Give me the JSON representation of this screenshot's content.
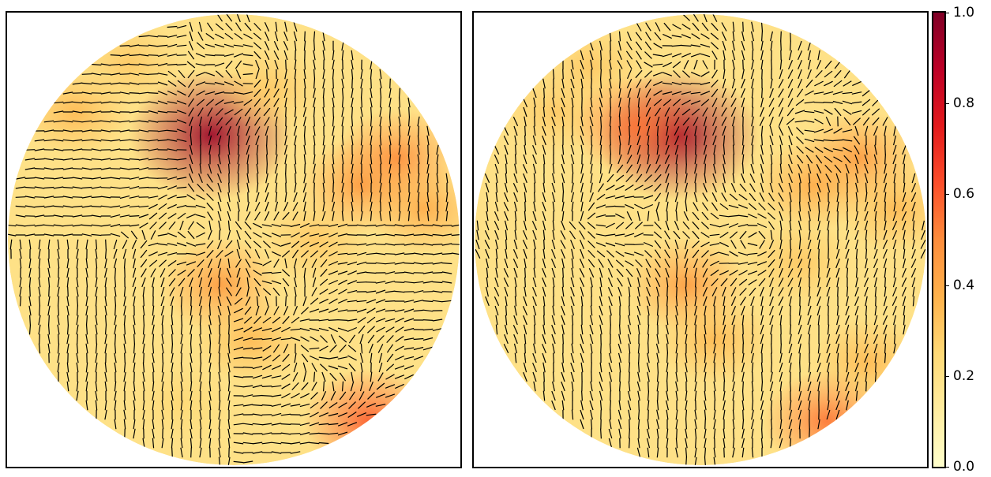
{
  "chart_data": [
    {
      "type": "heatmap",
      "panel": "left",
      "field": "orientation-vector-field",
      "colormap": "YlOrRd",
      "vmin": 0.0,
      "vmax": 1.0,
      "hotspots": [
        {
          "x": 0.45,
          "y": 0.27,
          "value": 0.95
        },
        {
          "x": 0.15,
          "y": 0.22,
          "value": 0.35
        },
        {
          "x": 0.27,
          "y": 0.11,
          "value": 0.3
        },
        {
          "x": 0.86,
          "y": 0.32,
          "value": 0.5
        },
        {
          "x": 0.78,
          "y": 0.38,
          "value": 0.45
        },
        {
          "x": 0.92,
          "y": 0.43,
          "value": 0.4
        },
        {
          "x": 0.47,
          "y": 0.6,
          "value": 0.45
        },
        {
          "x": 0.54,
          "y": 0.72,
          "value": 0.35
        },
        {
          "x": 0.8,
          "y": 0.9,
          "value": 0.6
        },
        {
          "x": 0.68,
          "y": 0.5,
          "value": 0.3
        },
        {
          "x": 0.38,
          "y": 0.86,
          "value": 0.25
        },
        {
          "x": 0.58,
          "y": 0.17,
          "value": 0.3
        }
      ]
    },
    {
      "type": "heatmap",
      "panel": "right",
      "field": "orientation-vector-field",
      "colormap": "YlOrRd",
      "vmin": 0.0,
      "vmax": 1.0,
      "hotspots": [
        {
          "x": 0.45,
          "y": 0.27,
          "value": 0.95
        },
        {
          "x": 0.18,
          "y": 0.22,
          "value": 0.3
        },
        {
          "x": 0.26,
          "y": 0.12,
          "value": 0.3
        },
        {
          "x": 0.36,
          "y": 0.25,
          "value": 0.55
        },
        {
          "x": 0.85,
          "y": 0.32,
          "value": 0.45
        },
        {
          "x": 0.75,
          "y": 0.38,
          "value": 0.4
        },
        {
          "x": 0.93,
          "y": 0.43,
          "value": 0.35
        },
        {
          "x": 0.47,
          "y": 0.6,
          "value": 0.45
        },
        {
          "x": 0.53,
          "y": 0.72,
          "value": 0.35
        },
        {
          "x": 0.78,
          "y": 0.9,
          "value": 0.55
        },
        {
          "x": 0.72,
          "y": 0.55,
          "value": 0.3
        },
        {
          "x": 0.87,
          "y": 0.77,
          "value": 0.35
        }
      ]
    }
  ],
  "colorbar": {
    "colormap": "YlOrRd",
    "min": 0.0,
    "max": 1.0,
    "ticks": [
      {
        "value": 1.0,
        "label": "1.0"
      },
      {
        "value": 0.8,
        "label": "0.8"
      },
      {
        "value": 0.6,
        "label": "0.6"
      },
      {
        "value": 0.4,
        "label": "0.4"
      },
      {
        "value": 0.2,
        "label": "0.2"
      },
      {
        "value": 0.0,
        "label": "0.0"
      }
    ],
    "colors": [
      "#ffffcc",
      "#ffeda0",
      "#fed976",
      "#feb24c",
      "#fd8d3c",
      "#fc4e2a",
      "#e31a1c",
      "#bd0026",
      "#800026"
    ]
  }
}
